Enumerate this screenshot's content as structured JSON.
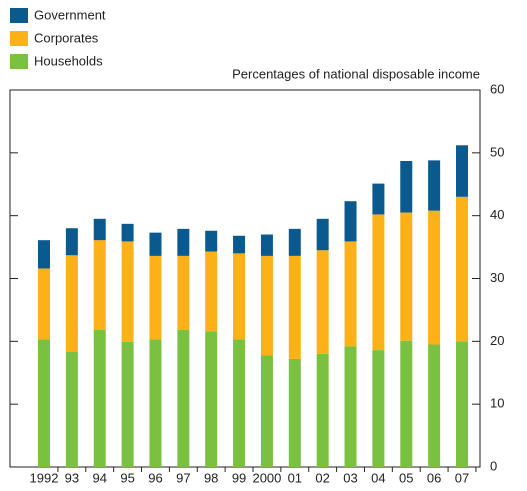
{
  "chart_data": {
    "type": "stacked-bar",
    "y_label": "Percentages of national disposable income",
    "categories": [
      "1992",
      "93",
      "94",
      "95",
      "96",
      "97",
      "98",
      "99",
      "2000",
      "01",
      "02",
      "03",
      "04",
      "05",
      "06",
      "07"
    ],
    "series": [
      {
        "name": "Households",
        "color": "#7ac142",
        "values": [
          20.3,
          18.3,
          21.8,
          19.9,
          20.3,
          21.8,
          21.6,
          20.3,
          17.8,
          17.2,
          18.0,
          19.2,
          18.6,
          20.1,
          19.5,
          20.0
        ]
      },
      {
        "name": "Corporates",
        "color": "#fbb117",
        "values": [
          11.3,
          15.4,
          14.3,
          16.0,
          13.3,
          11.8,
          12.7,
          13.7,
          15.8,
          16.4,
          16.5,
          16.7,
          21.6,
          20.4,
          21.3,
          23.0
        ]
      },
      {
        "name": "Government",
        "color": "#0a5a8f",
        "values": [
          4.5,
          4.3,
          3.4,
          2.8,
          3.7,
          4.3,
          3.3,
          2.8,
          3.4,
          4.3,
          5.0,
          6.4,
          4.9,
          8.2,
          8.0,
          8.2
        ]
      }
    ],
    "ylim": [
      0,
      60
    ],
    "yticks": [
      0,
      10,
      20,
      30,
      40,
      50,
      60
    ],
    "legend": "top-left"
  }
}
